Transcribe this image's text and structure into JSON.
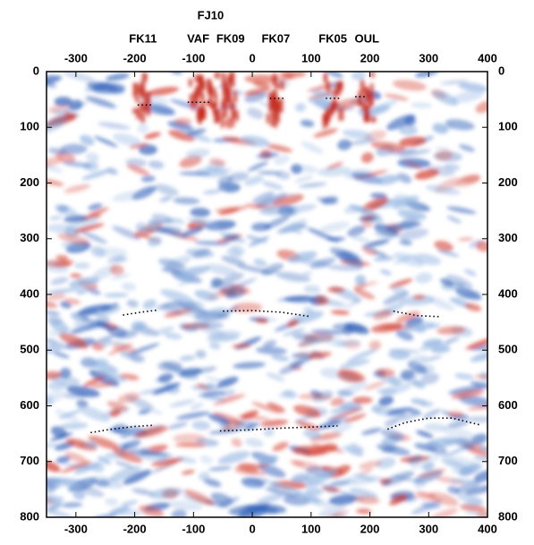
{
  "chart_data": {
    "type": "image",
    "xlim": [
      -350,
      400
    ],
    "ylim": [
      0,
      800
    ],
    "xticks": [
      -300,
      -200,
      -100,
      0,
      100,
      200,
      300,
      400
    ],
    "yticks": [
      0,
      100,
      200,
      300,
      400,
      500,
      600,
      700,
      800
    ],
    "stations": [
      {
        "label": "FK11",
        "x": -186
      },
      {
        "label": "FJ10",
        "x": -71
      },
      {
        "label": "VAF",
        "x": -92
      },
      {
        "label": "FK09",
        "x": -37
      },
      {
        "label": "FK07",
        "x": 40
      },
      {
        "label": "FK05",
        "x": 137
      },
      {
        "label": "OUL",
        "x": 195
      }
    ],
    "lines": [
      {
        "x": [
          -195,
          -170
        ],
        "y": [
          60,
          60
        ]
      },
      {
        "x": [
          -110,
          -70
        ],
        "y": [
          55,
          55
        ]
      },
      {
        "x": [
          30,
          55
        ],
        "y": [
          48,
          48
        ]
      },
      {
        "x": [
          125,
          150
        ],
        "y": [
          48,
          48
        ]
      },
      {
        "x": [
          175,
          195
        ],
        "y": [
          45,
          45
        ]
      },
      {
        "x": [
          -220,
          -190,
          -160
        ],
        "y": [
          437,
          432,
          428
        ]
      },
      {
        "x": [
          -50,
          0,
          50,
          100
        ],
        "y": [
          430,
          429,
          432,
          440
        ]
      },
      {
        "x": [
          240,
          280,
          320
        ],
        "y": [
          430,
          438,
          440
        ]
      },
      {
        "x": [
          -275,
          -240,
          -200,
          -170
        ],
        "y": [
          648,
          642,
          637,
          635
        ]
      },
      {
        "x": [
          -55,
          0,
          50,
          100,
          145
        ],
        "y": [
          645,
          643,
          640,
          638,
          636
        ]
      },
      {
        "x": [
          230,
          260,
          300,
          340,
          390
        ],
        "y": [
          642,
          630,
          622,
          622,
          635
        ]
      }
    ]
  }
}
